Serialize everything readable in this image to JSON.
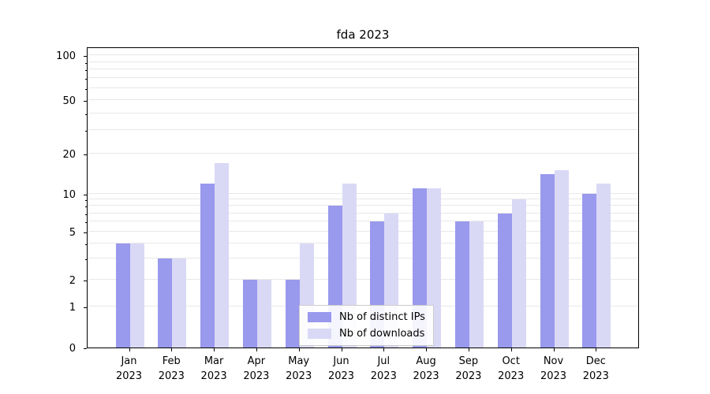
{
  "chart_data": {
    "type": "bar",
    "title": "fda 2023",
    "categories": [
      "Jan 2023",
      "Feb 2023",
      "Mar 2023",
      "Apr 2023",
      "May 2023",
      "Jun 2023",
      "Jul 2023",
      "Aug 2023",
      "Sep 2023",
      "Oct 2023",
      "Nov 2023",
      "Dec 2023"
    ],
    "series": [
      {
        "name": "Nb of distinct IPs",
        "color": "#9999ee",
        "values": [
          4,
          3,
          12,
          2,
          2,
          8,
          6,
          11,
          6,
          7,
          14,
          10
        ]
      },
      {
        "name": "Nb of downloads",
        "color": "#d9d9f6",
        "values": [
          4,
          3,
          17,
          2,
          4,
          12,
          7,
          11,
          6,
          9,
          15,
          12
        ]
      }
    ],
    "yscale": "symlog",
    "ylim": [
      0,
      100
    ],
    "yticks": [
      0,
      1,
      2,
      5,
      10,
      20,
      50,
      100
    ],
    "minor_gridlines": [
      1,
      2,
      3,
      4,
      5,
      6,
      7,
      8,
      9,
      10,
      20,
      30,
      40,
      50,
      60,
      70,
      80,
      90,
      100
    ],
    "xlabel": "",
    "ylabel": "",
    "grid": true,
    "legend_position": "lower center"
  }
}
